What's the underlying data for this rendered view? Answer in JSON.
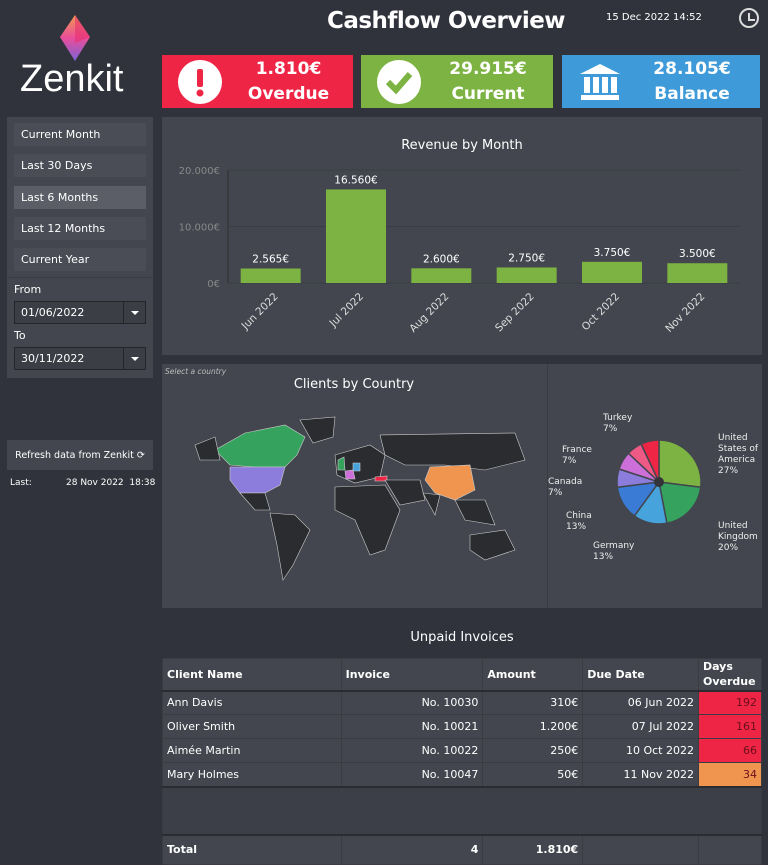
{
  "header": {
    "title": "Cashflow Overview",
    "datetime": "15 Dec 2022 14:52",
    "logo": "Zenkit"
  },
  "cards": [
    {
      "value": "1.810€",
      "label": "Overdue",
      "icon": "exclamation-icon",
      "color": "#ef2545"
    },
    {
      "value": "29.915€",
      "label": "Current",
      "icon": "check-icon",
      "color": "#7cb342"
    },
    {
      "value": "28.105€",
      "label": "Balance",
      "icon": "bank-icon",
      "color": "#3e9ad8"
    }
  ],
  "sidebar": {
    "presets": [
      "Current Month",
      "Last 30 Days",
      "Last 6 Months",
      "Last 12 Months",
      "Current Year"
    ],
    "active": "Last 6 Months",
    "from_label": "From",
    "from_value": "01/06/2022",
    "to_label": "To",
    "to_value": "30/11/2022",
    "refresh_label": "Refresh data from Zenkit",
    "last_label": "Last:",
    "last_value": "28 Nov 2022  18:38"
  },
  "chart_data": [
    {
      "type": "bar",
      "title": "Revenue by Month",
      "categories": [
        "Jun 2022",
        "Jul 2022",
        "Aug 2022",
        "Sep 2022",
        "Oct 2022",
        "Nov 2022"
      ],
      "values": [
        2565,
        16560,
        2600,
        2750,
        3750,
        3500
      ],
      "labels": [
        "2.565€",
        "16.560€",
        "2.600€",
        "2.750€",
        "3.750€",
        "3.500€"
      ],
      "yticks": [
        "0€",
        "10.000€",
        "20.000€"
      ],
      "ylim": [
        0,
        20000
      ],
      "color": "#7cb342"
    },
    {
      "type": "pie",
      "title": "Clients by Country",
      "hint": "Select a country",
      "slices": [
        {
          "name": "United States of America",
          "pct": "27%",
          "value": 27,
          "color": "#7cb342"
        },
        {
          "name": "United Kingdom",
          "pct": "20%",
          "value": 20,
          "color": "#35a35e"
        },
        {
          "name": "Germany",
          "pct": "13%",
          "value": 13,
          "color": "#47a3dc"
        },
        {
          "name": "China",
          "pct": "13%",
          "value": 13,
          "color": "#3a7bd5"
        },
        {
          "name": "Canada",
          "pct": "7%",
          "value": 7,
          "color": "#8c7ddc"
        },
        {
          "name": "France",
          "pct": "7%",
          "value": 7,
          "color": "#cc6fd8"
        },
        {
          "name": "",
          "pct": "",
          "value": 6,
          "color": "#ee5a85"
        },
        {
          "name": "Turkey",
          "pct": "7%",
          "value": 7,
          "color": "#ef2545"
        }
      ]
    }
  ],
  "invoices": {
    "title": "Unpaid Invoices",
    "columns": [
      "Client Name",
      "Invoice",
      "Amount",
      "Due Date",
      "Days Overdue"
    ],
    "rows": [
      [
        "Ann Davis",
        "No. 10030",
        "310€",
        "06 Jun 2022",
        "192"
      ],
      [
        "Oliver Smith",
        "No. 10021",
        "1.200€",
        "07 Jul 2022",
        "161"
      ],
      [
        "Aimée Martin",
        "No. 10022",
        "250€",
        "10 Oct 2022",
        "66"
      ],
      [
        "Mary Holmes",
        "No. 10047",
        "50€",
        "11 Nov 2022",
        "34"
      ]
    ],
    "overdue_colors": [
      "#ef2545",
      "#ef2545",
      "#ef2545",
      "#f0954f"
    ],
    "total": [
      "Total",
      "4",
      "1.810€"
    ]
  }
}
